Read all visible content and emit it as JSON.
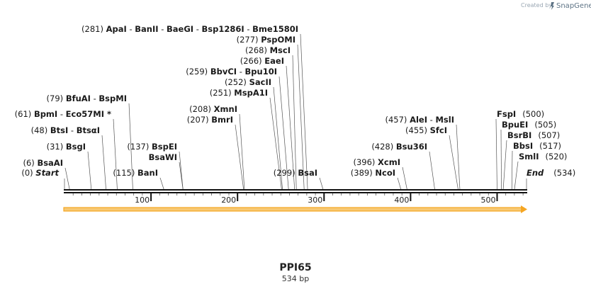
{
  "credit": {
    "prefix": "Created by",
    "brand": "SnapGene"
  },
  "sequence": {
    "name": "PPI65",
    "length_label": "534 bp",
    "length": 534
  },
  "ticks": [
    {
      "pos": 100,
      "label": "100"
    },
    {
      "pos": 200,
      "label": "200"
    },
    {
      "pos": 300,
      "label": "300"
    },
    {
      "pos": 400,
      "label": "400"
    },
    {
      "pos": 500,
      "label": "500"
    }
  ],
  "ends": [
    {
      "pos": 0,
      "label": "Start",
      "pos_label": "(0)"
    },
    {
      "pos": 534,
      "label": "End",
      "pos_label": "(534)"
    }
  ],
  "sites": [
    {
      "pos": 6,
      "pos_label": "(6)",
      "names": [
        "BsaAI"
      ],
      "side": "left"
    },
    {
      "pos": 31,
      "pos_label": "(31)",
      "names": [
        "BsgI"
      ],
      "side": "left"
    },
    {
      "pos": 48,
      "pos_label": "(48)",
      "names": [
        "BtsI",
        "BtsαI"
      ],
      "side": "left"
    },
    {
      "pos": 61,
      "pos_label": "(61)",
      "names": [
        "BpmI",
        "Eco57MI *"
      ],
      "side": "left"
    },
    {
      "pos": 79,
      "pos_label": "(79)",
      "names": [
        "BfuAI",
        "BspMI"
      ],
      "side": "left"
    },
    {
      "pos": 115,
      "pos_label": "(115)",
      "names": [
        "BanI"
      ],
      "side": "left"
    },
    {
      "pos": 137,
      "pos_label": "(137)",
      "names": [
        "BspEI"
      ],
      "side": "left"
    },
    {
      "pos": 137,
      "pos_label": "",
      "names": [
        "BsaWI"
      ],
      "side": "left"
    },
    {
      "pos": 207,
      "pos_label": "(207)",
      "names": [
        "BmrI"
      ],
      "side": "left"
    },
    {
      "pos": 208,
      "pos_label": "(208)",
      "names": [
        "XmnI"
      ],
      "side": "left"
    },
    {
      "pos": 251,
      "pos_label": "(251)",
      "names": [
        "MspA1I"
      ],
      "side": "left"
    },
    {
      "pos": 252,
      "pos_label": "(252)",
      "names": [
        "SacII"
      ],
      "side": "left"
    },
    {
      "pos": 259,
      "pos_label": "(259)",
      "names": [
        "BbvCI",
        "Bpu10I"
      ],
      "side": "left"
    },
    {
      "pos": 266,
      "pos_label": "(266)",
      "names": [
        "EaeI"
      ],
      "side": "left"
    },
    {
      "pos": 268,
      "pos_label": "(268)",
      "names": [
        "MscI"
      ],
      "side": "left"
    },
    {
      "pos": 277,
      "pos_label": "(277)",
      "names": [
        "PspOMI"
      ],
      "side": "left"
    },
    {
      "pos": 281,
      "pos_label": "(281)",
      "names": [
        "ApaI",
        "BanII",
        "BaeGI",
        "Bsp1286I",
        "Bme1580I"
      ],
      "side": "left"
    },
    {
      "pos": 299,
      "pos_label": "(299)",
      "names": [
        "BsaI"
      ],
      "side": "left"
    },
    {
      "pos": 389,
      "pos_label": "(389)",
      "names": [
        "NcoI"
      ],
      "side": "left"
    },
    {
      "pos": 396,
      "pos_label": "(396)",
      "names": [
        "XcmI"
      ],
      "side": "left"
    },
    {
      "pos": 428,
      "pos_label": "(428)",
      "names": [
        "Bsu36I"
      ],
      "side": "left"
    },
    {
      "pos": 455,
      "pos_label": "(455)",
      "names": [
        "SfcI"
      ],
      "side": "left"
    },
    {
      "pos": 457,
      "pos_label": "(457)",
      "names": [
        "AleI",
        "MslI"
      ],
      "side": "left"
    },
    {
      "pos": 500,
      "pos_label": "(500)",
      "names": [
        "FspI"
      ],
      "side": "right"
    },
    {
      "pos": 505,
      "pos_label": "(505)",
      "names": [
        "BpuEI"
      ],
      "side": "right"
    },
    {
      "pos": 507,
      "pos_label": "(507)",
      "names": [
        "BsrBI"
      ],
      "side": "right"
    },
    {
      "pos": 517,
      "pos_label": "(517)",
      "names": [
        "BbsI"
      ],
      "side": "right"
    },
    {
      "pos": 520,
      "pos_label": "(520)",
      "names": [
        "SmlI"
      ],
      "side": "right"
    }
  ],
  "feature": {
    "color": "#f5a623",
    "fill": "#f7c873"
  }
}
